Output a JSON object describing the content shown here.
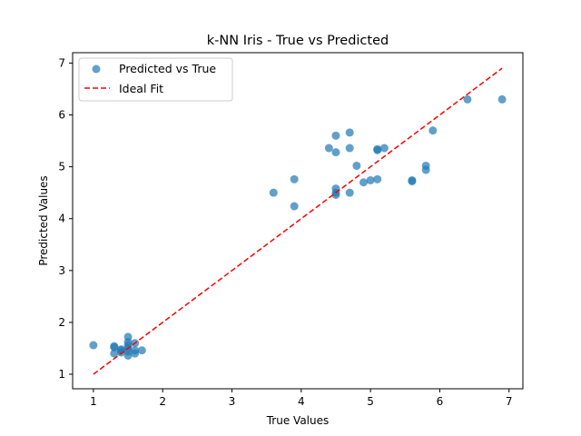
{
  "chart_data": {
    "type": "scatter",
    "title": "k-NN Iris - True vs Predicted",
    "xlabel": "True Values",
    "ylabel": "Predicted Values",
    "xlim": [
      0.7,
      7.2
    ],
    "ylim": [
      0.72,
      7.2
    ],
    "xticks": [
      1,
      2,
      3,
      4,
      5,
      6,
      7
    ],
    "yticks": [
      1,
      2,
      3,
      4,
      5,
      6,
      7
    ],
    "grid": false,
    "legend_position": "top-left",
    "series": [
      {
        "name": "Predicted vs True",
        "kind": "scatter",
        "color": "#1f77b4",
        "points": [
          [
            1.0,
            1.56
          ],
          [
            1.3,
            1.52
          ],
          [
            1.3,
            1.54
          ],
          [
            1.3,
            1.4
          ],
          [
            1.4,
            1.46
          ],
          [
            1.4,
            1.48
          ],
          [
            1.4,
            1.42
          ],
          [
            1.5,
            1.72
          ],
          [
            1.5,
            1.62
          ],
          [
            1.5,
            1.56
          ],
          [
            1.5,
            1.5
          ],
          [
            1.5,
            1.44
          ],
          [
            1.5,
            1.36
          ],
          [
            1.6,
            1.6
          ],
          [
            1.6,
            1.46
          ],
          [
            1.6,
            1.4
          ],
          [
            1.7,
            1.46
          ],
          [
            3.6,
            4.5
          ],
          [
            3.9,
            4.76
          ],
          [
            3.9,
            4.24
          ],
          [
            4.4,
            5.36
          ],
          [
            4.5,
            5.6
          ],
          [
            4.5,
            5.28
          ],
          [
            4.5,
            4.58
          ],
          [
            4.5,
            4.5
          ],
          [
            4.5,
            4.46
          ],
          [
            4.7,
            5.66
          ],
          [
            4.7,
            5.36
          ],
          [
            4.7,
            4.5
          ],
          [
            4.8,
            5.02
          ],
          [
            4.9,
            4.7
          ],
          [
            5.0,
            4.74
          ],
          [
            5.1,
            5.32
          ],
          [
            5.1,
            5.34
          ],
          [
            5.1,
            4.76
          ],
          [
            5.2,
            5.36
          ],
          [
            5.6,
            4.72
          ],
          [
            5.6,
            4.74
          ],
          [
            5.8,
            5.02
          ],
          [
            5.8,
            4.94
          ],
          [
            5.9,
            5.7
          ],
          [
            6.4,
            6.3
          ],
          [
            6.9,
            6.3
          ]
        ]
      },
      {
        "name": "Ideal Fit",
        "kind": "line",
        "style": "dashed",
        "color": "#ff0000",
        "points": [
          [
            1.0,
            1.0
          ],
          [
            6.9,
            6.9
          ]
        ]
      }
    ]
  }
}
